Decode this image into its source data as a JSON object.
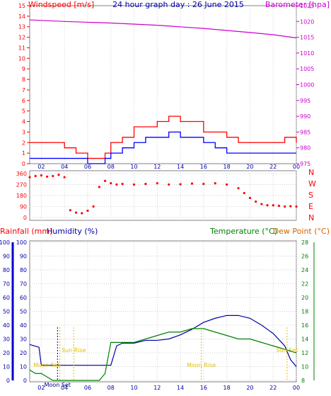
{
  "colors": {
    "wind_gust": "#ff0000",
    "wind_avg": "#0000ff",
    "barometer": "#cc00cc",
    "direction": "#ff0000",
    "rain": "#ff0000",
    "humidity": "#0000aa",
    "temperature": "#008000",
    "dewpoint": "#cc6600",
    "sun": "#e0c000",
    "moon": "#e0c000"
  },
  "chart_data": [
    {
      "type": "line",
      "title": "24 hour graph day : 26 June 2015",
      "left_axis_label": "Windspeed [m/s]",
      "right_axis_label": "Barometer [hpa]",
      "left_ticks": [
        "0",
        "1",
        "2",
        "3",
        "4",
        "5",
        "6",
        "7",
        "8",
        "9",
        "10",
        "11",
        "12",
        "13",
        "14",
        "15"
      ],
      "right_ticks": [
        "975",
        "980",
        "985",
        "990",
        "995",
        "1000",
        "1005",
        "1010",
        "1015",
        "1020",
        "1025"
      ],
      "x_ticks": [
        "02",
        "04",
        "06",
        "08",
        "10",
        "12",
        "14",
        "16",
        "18",
        "20",
        "22",
        "00"
      ],
      "ylim": [
        0,
        15
      ],
      "ylim_right": [
        975,
        1025
      ],
      "xlim_hours": [
        1.0,
        24.0
      ],
      "series": [
        {
          "key": "gust",
          "x": [
            1,
            2,
            3,
            4,
            5,
            6,
            7,
            7.5,
            8,
            9,
            10,
            11,
            12,
            13,
            14,
            15,
            16,
            17,
            18,
            19,
            20,
            21,
            22,
            23,
            24
          ],
          "values": [
            2,
            2,
            2,
            1.5,
            1,
            0.5,
            0.5,
            1,
            2,
            2.5,
            3.5,
            3.5,
            4,
            4.5,
            4,
            4,
            3,
            3,
            2.5,
            2,
            2,
            2,
            2,
            2.5,
            2
          ]
        },
        {
          "key": "avg",
          "x": [
            1,
            2,
            3,
            4,
            5,
            6,
            7,
            7.5,
            8,
            9,
            10,
            11,
            12,
            13,
            14,
            15,
            16,
            17,
            18,
            19,
            20,
            21,
            22,
            23,
            24
          ],
          "values": [
            0.5,
            0.5,
            0.5,
            0.5,
            0.5,
            0,
            0,
            0.5,
            1,
            1.5,
            2,
            2.5,
            2.5,
            3,
            2.5,
            2.5,
            2,
            1.5,
            1,
            1,
            1,
            1,
            1,
            1,
            1
          ]
        },
        {
          "key": "barometer",
          "x": [
            1,
            4,
            8,
            12,
            16,
            20,
            22,
            24
          ],
          "values": [
            1020.5,
            1020,
            1019.5,
            1018.8,
            1017.8,
            1016.5,
            1015.8,
            1014.8
          ]
        }
      ]
    },
    {
      "type": "scatter",
      "title": "",
      "left_ticks": [
        "0",
        "90",
        "180",
        "270",
        "360"
      ],
      "right_ticks": [
        "N",
        "W",
        "S",
        "E",
        "N"
      ],
      "ylim": [
        0,
        360
      ],
      "series": [
        {
          "key": "direction",
          "x": [
            1,
            1.5,
            2,
            2.5,
            3,
            3.5,
            4,
            4.5,
            5,
            5.5,
            6,
            6.5,
            7,
            7.5,
            8,
            8.5,
            9,
            10,
            11,
            12,
            13,
            14,
            15,
            16,
            17,
            18,
            19,
            19.5,
            20,
            20.5,
            21,
            21.5,
            22,
            22.5,
            23,
            23.5,
            24
          ],
          "values": [
            330,
            340,
            345,
            335,
            340,
            350,
            330,
            60,
            40,
            35,
            55,
            90,
            250,
            300,
            280,
            270,
            275,
            270,
            275,
            280,
            270,
            272,
            278,
            275,
            280,
            270,
            240,
            200,
            160,
            130,
            110,
            100,
            100,
            95,
            90,
            92,
            90
          ]
        }
      ]
    },
    {
      "type": "line",
      "title": "",
      "left_axis_label": "Rainfall (mm)",
      "left_axis_label2": "Humidity (%)",
      "right_axis_label": "Temperature (°C)",
      "right_axis_label2": "Dew Point (°C)",
      "left_ticks": [
        "0",
        "10",
        "20",
        "30",
        "40",
        "50",
        "60",
        "70",
        "80",
        "90",
        "100"
      ],
      "left_ticks_inner": [
        "0",
        "10",
        "20",
        "30",
        "40",
        "50",
        "60",
        "70",
        "80",
        "90",
        "100"
      ],
      "right_ticks": [
        "8",
        "10",
        "12",
        "14",
        "16",
        "18",
        "20",
        "22",
        "24",
        "26",
        "28"
      ],
      "x_ticks": [
        "02",
        "04",
        "06",
        "08",
        "10",
        "12",
        "14",
        "16",
        "18",
        "20",
        "22",
        "00"
      ],
      "ylim": [
        0,
        100
      ],
      "ylim_right": [
        8,
        28
      ],
      "annotations": [
        "Sun Rise",
        "Sun Set",
        "Moon Set",
        "Moon Rise",
        "Moon Set"
      ],
      "series": [
        {
          "key": "humidity",
          "x": [
            1,
            1.8,
            2,
            3,
            4,
            5,
            6,
            7,
            7.5,
            8,
            8.5,
            9,
            10,
            11,
            12,
            13,
            14,
            15,
            16,
            17,
            18,
            19,
            20,
            21,
            22,
            23,
            23.5,
            24
          ],
          "values": [
            26,
            24,
            11,
            11,
            11,
            11,
            11,
            11,
            11,
            11,
            25,
            27,
            27,
            29,
            29,
            30,
            33,
            37,
            42,
            45,
            47,
            47,
            45,
            40,
            34,
            25,
            15,
            10
          ]
        },
        {
          "key": "temperature",
          "x": [
            1,
            1.5,
            2,
            2.5,
            3,
            5,
            6,
            6.5,
            7,
            7.5,
            8,
            9,
            10,
            11,
            12,
            13,
            14,
            15,
            16,
            17,
            18,
            19,
            20,
            21,
            22,
            23,
            24
          ],
          "values": [
            9.5,
            9,
            9,
            8.5,
            8,
            8,
            8,
            8,
            8,
            9,
            13.5,
            13.5,
            13.5,
            14,
            14.5,
            15,
            15,
            15.5,
            15.5,
            15,
            14.5,
            14,
            14,
            13.5,
            13,
            12.5,
            12
          ]
        }
      ]
    }
  ],
  "chart_labels": {
    "sun_rise": "Sun Rise",
    "sun_set": "Sun Set",
    "moon_set_1": "Moon Set",
    "moon_rise": "Moon Rise",
    "moon_set_2": "Moon Set"
  }
}
